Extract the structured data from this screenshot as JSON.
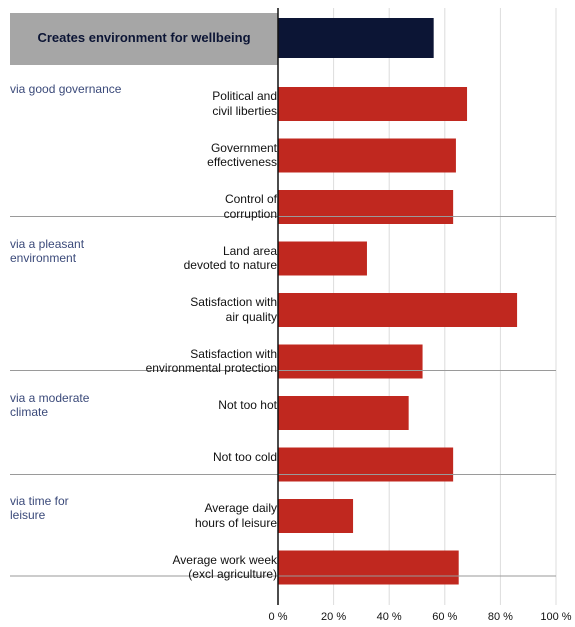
{
  "chart_data": {
    "type": "bar",
    "orientation": "horizontal",
    "header": {
      "label": "Creates environment for wellbeing",
      "value": 56
    },
    "groups": [
      {
        "label": "via good governance",
        "rows": [
          {
            "label": "Political and\ncivil liberties",
            "value": 68
          },
          {
            "label": "Government\neffectiveness",
            "value": 64
          },
          {
            "label": "Control of\ncorruption",
            "value": 63
          }
        ]
      },
      {
        "label": "via a pleasant\nenvironment",
        "rows": [
          {
            "label": "Land area\ndevoted to nature",
            "value": 32
          },
          {
            "label": "Satisfaction with\nair quality",
            "value": 86
          },
          {
            "label": "Satisfaction with\nenvironmental protection",
            "value": 52
          }
        ]
      },
      {
        "label": "via a moderate\nclimate",
        "rows": [
          {
            "label": "Not too hot",
            "value": 47
          },
          {
            "label": "Not too cold",
            "value": 63
          }
        ]
      },
      {
        "label": "via time for\nleisure",
        "rows": [
          {
            "label": "Average daily\nhours of leisure",
            "value": 27
          },
          {
            "label": "Average work week\n(excl agriculture)",
            "value": 65
          }
        ]
      }
    ],
    "xlim": [
      0,
      100
    ],
    "x_ticks": [
      "0 %",
      "20 %",
      "40 %",
      "60 %",
      "80 %",
      "100 %"
    ],
    "grid": true,
    "colors": {
      "bar": "#c0281f",
      "header_bar": "#0c1535",
      "header_band": "#a6a6a6",
      "group_label": "#3b4a7a"
    }
  }
}
